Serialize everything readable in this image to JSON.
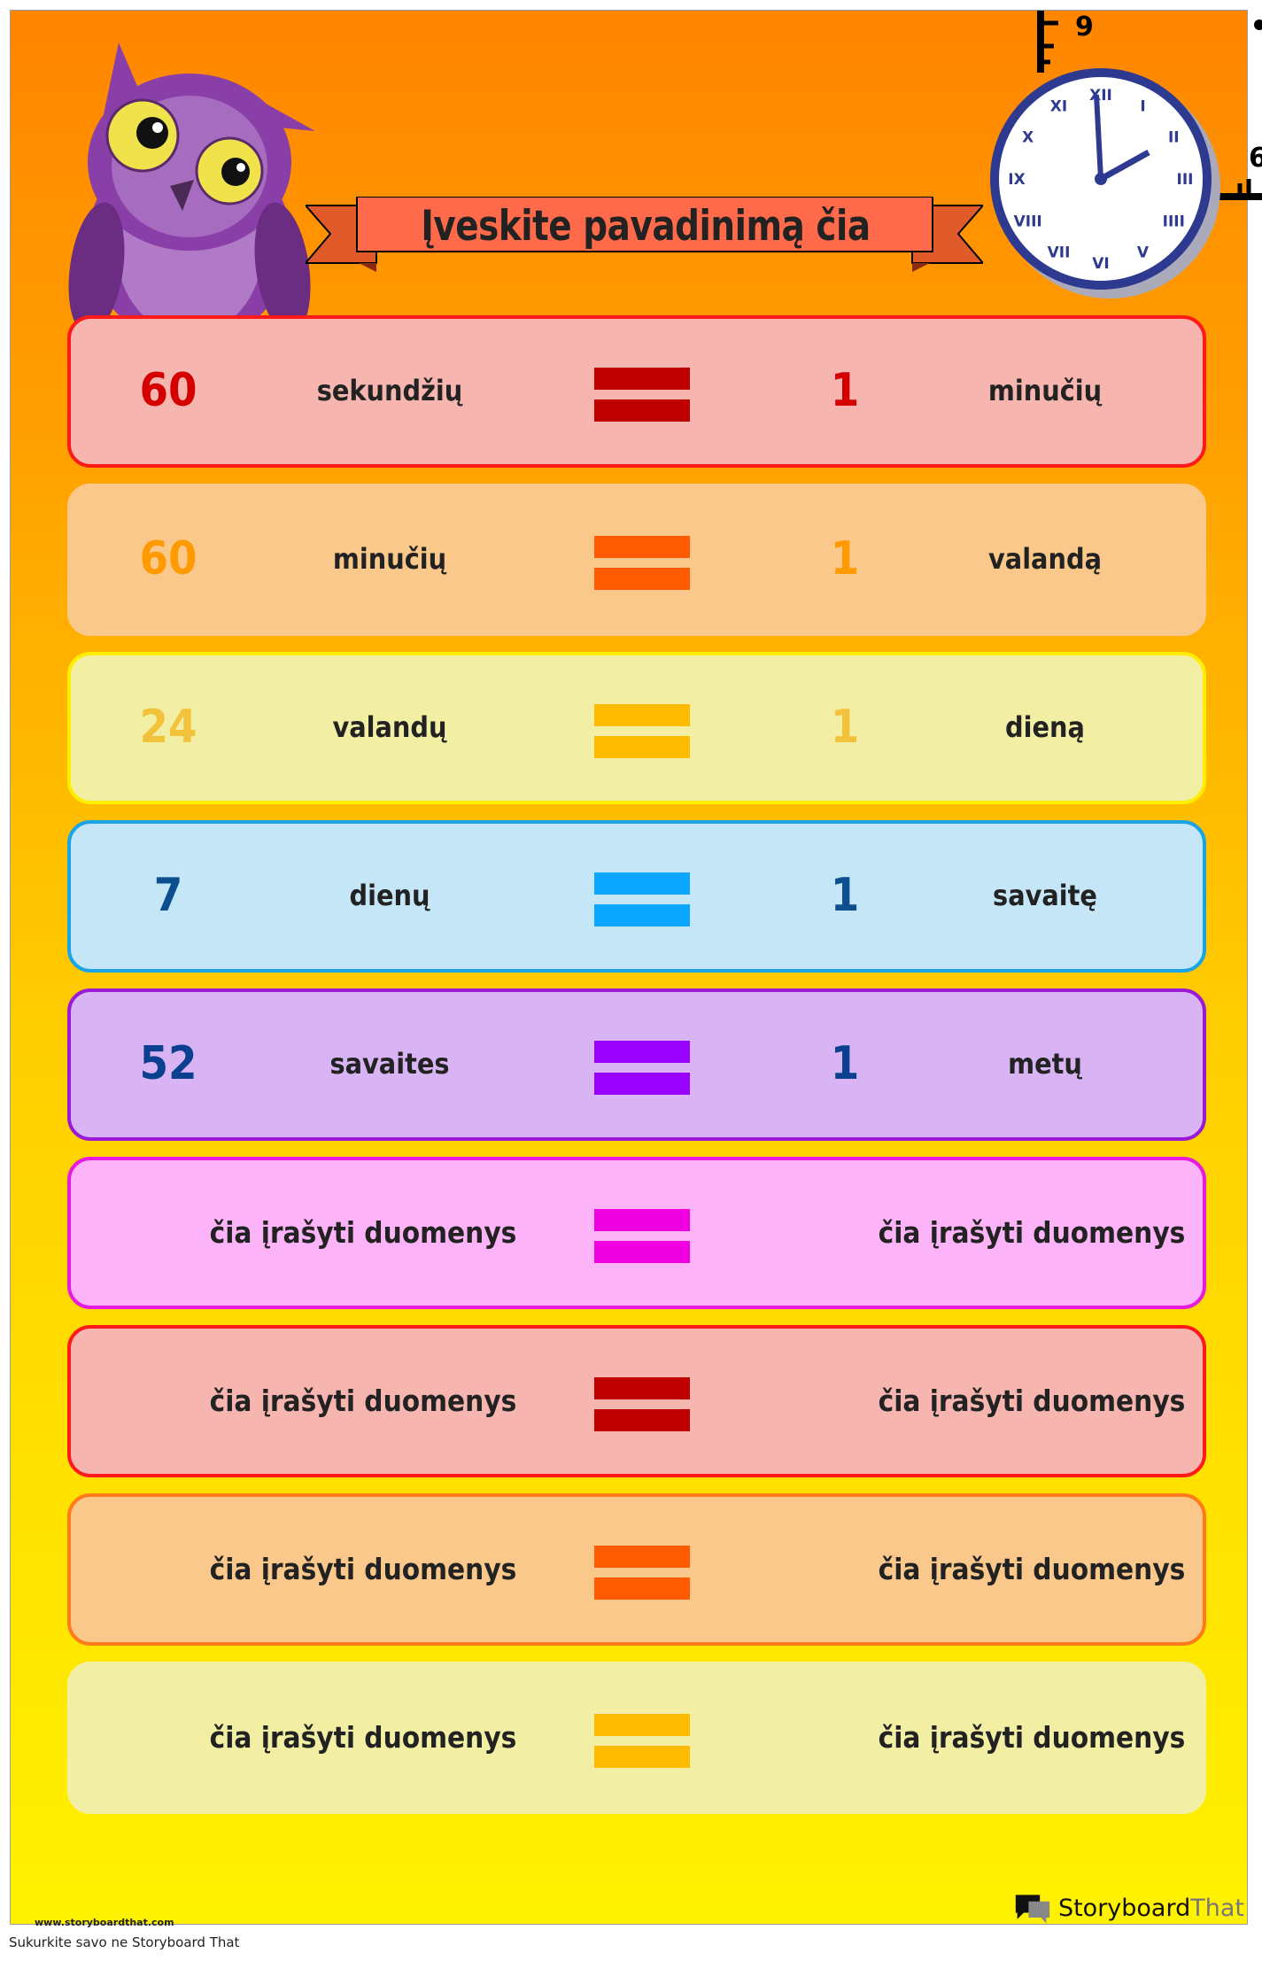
{
  "title": "Įveskite pavadinimą čia",
  "clock_numerals": [
    "XII",
    "I",
    "II",
    "III",
    "IIII",
    "V",
    "VI",
    "VII",
    "VIII",
    "IX",
    "X",
    "XI"
  ],
  "clock_time": "2:00",
  "ruler_labels": {
    "top": "9",
    "right": "6"
  },
  "rows": [
    {
      "left_number": "60",
      "left_word": "sekundžių",
      "right_number": "1",
      "right_word": "minučių",
      "bg": "#f7b5b0",
      "border": "#ff1a1a",
      "bar": "#c00000",
      "num_color": "#d40000"
    },
    {
      "left_number": "60",
      "left_word": "minučių",
      "right_number": "1",
      "right_word": "valandą",
      "bg": "#f9c88a",
      "border": "#f9c88a",
      "bar": "#ff5a00",
      "num_color": "#ff9a00"
    },
    {
      "left_number": "24",
      "left_word": "valandų",
      "right_number": "1",
      "right_word": "dieną",
      "bg": "#f2efa4",
      "border": "#ffee00",
      "bar": "#ffbb00",
      "num_color": "#f2c23a"
    },
    {
      "left_number": "7",
      "left_word": "dienų",
      "right_number": "1",
      "right_word": "savaitę",
      "bg": "#c4e6f7",
      "border": "#1aa3e6",
      "bar": "#0aa6ff",
      "num_color": "#0b4f8f"
    },
    {
      "left_number": "52",
      "left_word": "savaites",
      "right_number": "1",
      "right_word": "metų",
      "bg": "#d9b4f5",
      "border": "#9b1ad6",
      "bar": "#9a00ff",
      "num_color": "#0b3f8f"
    },
    {
      "left_text": "čia įrašyti duomenys",
      "right_text": "čia įrašyti duomenys",
      "bg": "#fcb3f7",
      "border": "#e81ae0",
      "bar": "#f000e0"
    },
    {
      "left_text": "čia įrašyti duomenys",
      "right_text": "čia įrašyti duomenys",
      "bg": "#f7b5b0",
      "border": "#ff1a1a",
      "bar": "#c00000"
    },
    {
      "left_text": "čia įrašyti duomenys",
      "right_text": "čia įrašyti duomenys",
      "bg": "#f9c88a",
      "border": "#ff7a1a",
      "bar": "#ff5a00"
    },
    {
      "left_text": "čia įrašyti duomenys",
      "right_text": "čia įrašyti duomenys",
      "bg": "#f2efa4",
      "border": "#f2efa4",
      "bar": "#ffbb00"
    }
  ],
  "footer_url": "www.storyboardthat.com",
  "brand": {
    "part1": "Storyboard",
    "part2": "That"
  },
  "caption": "Sukurkite savo ne Storyboard That",
  "icons": [
    "owl-illustration",
    "clock-icon",
    "equals-icon",
    "storyboard-logo-icon"
  ]
}
